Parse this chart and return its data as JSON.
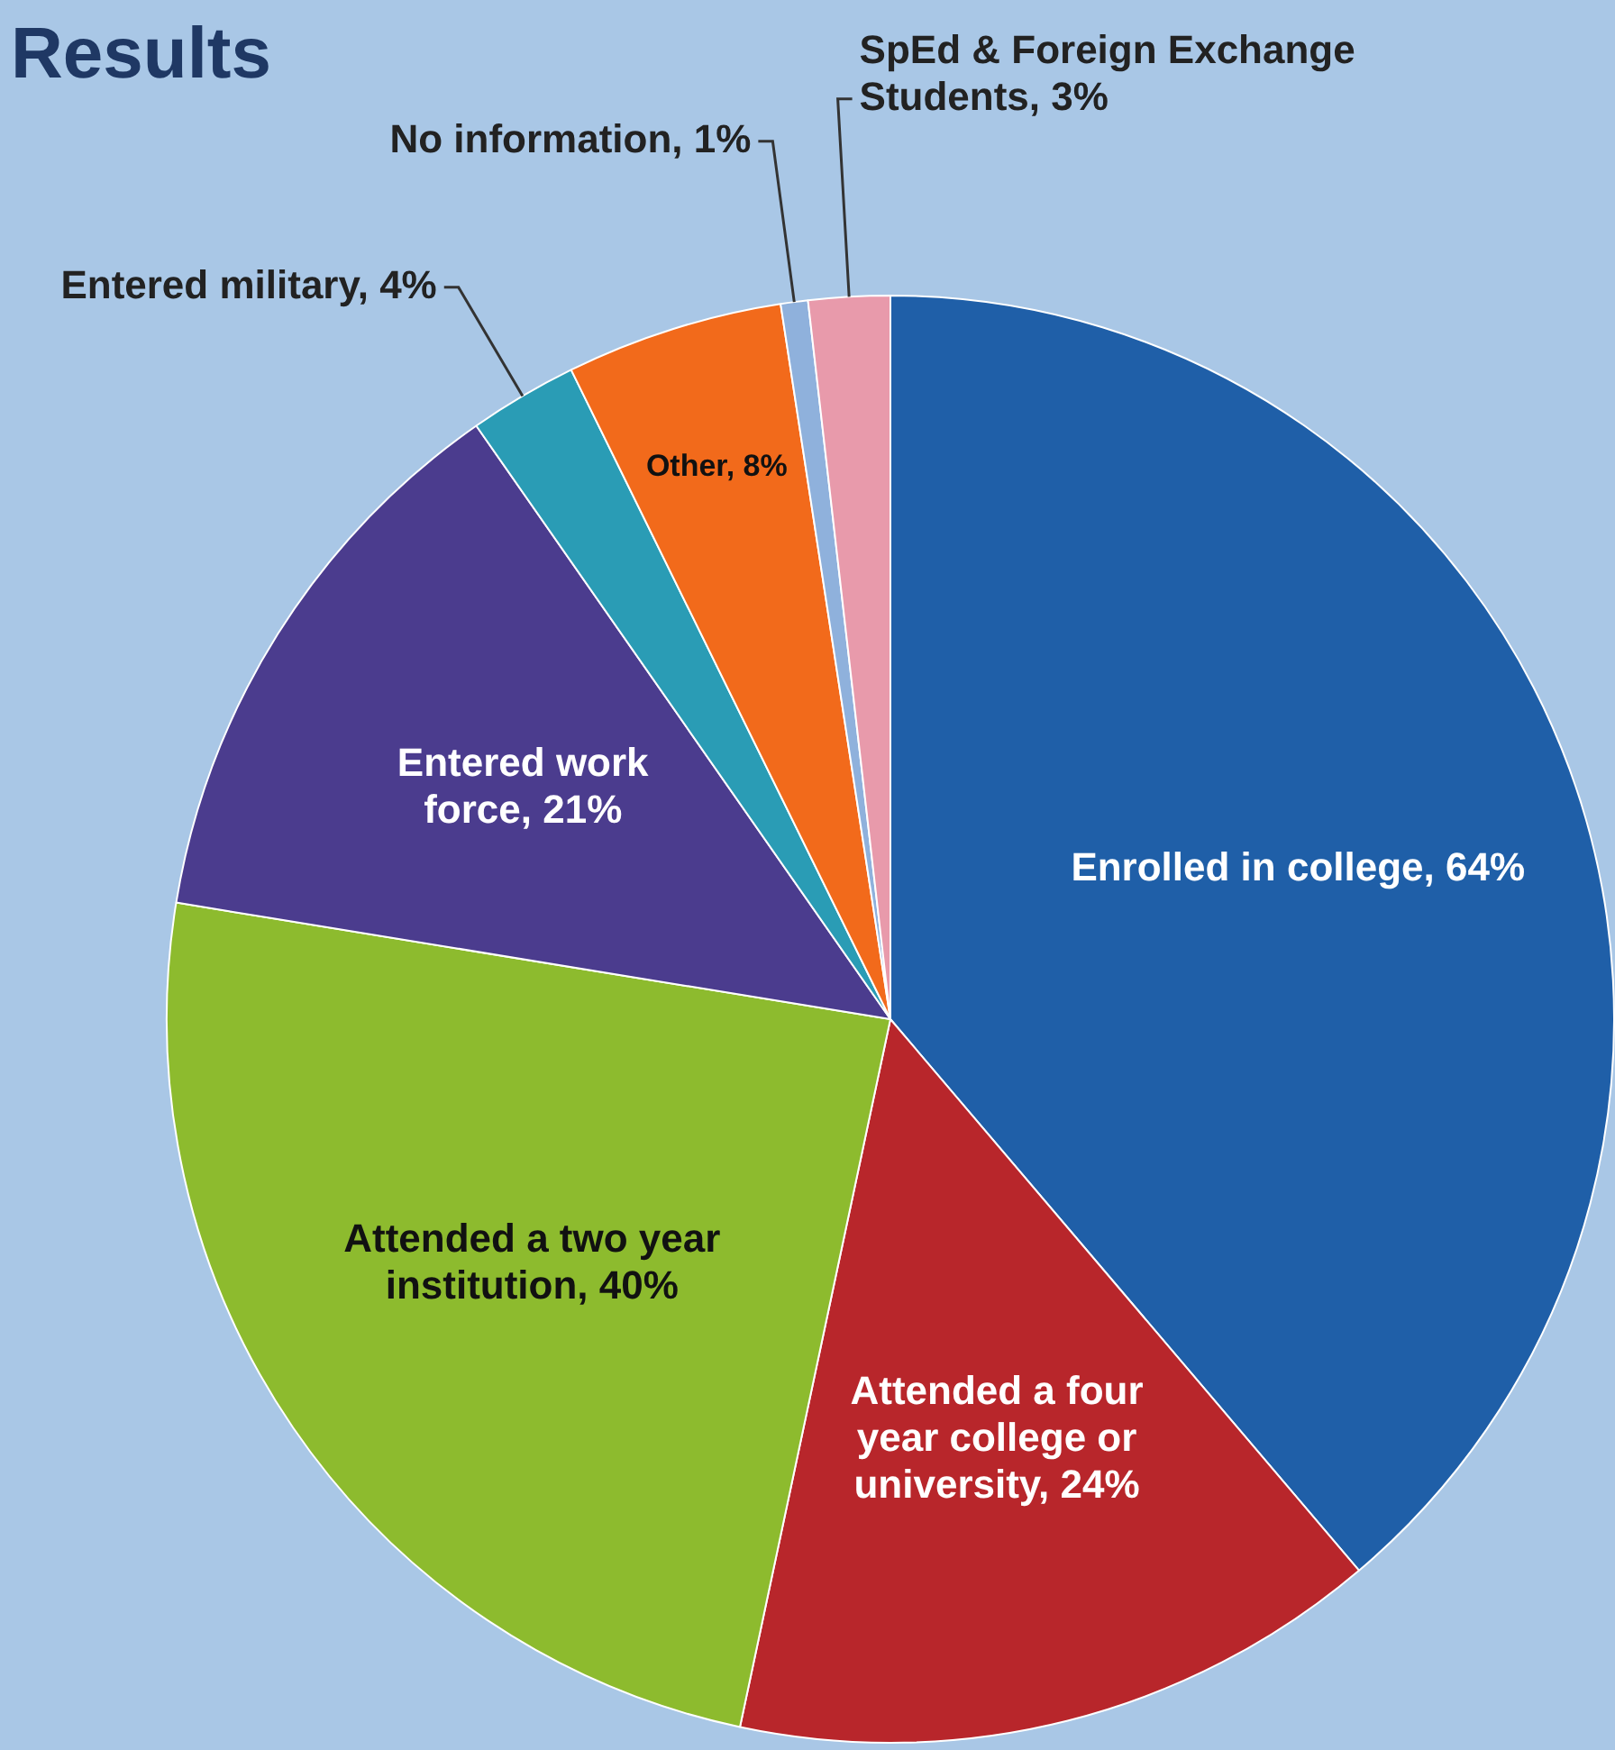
{
  "chart_data": {
    "type": "pie",
    "title": "Results",
    "categories": [
      "Enrolled in college",
      "Attended a four year college or university",
      "Attended a two year institution",
      "Entered work force",
      "Entered military",
      "Other",
      "No information",
      "SpEd & Foreign Exchange Students"
    ],
    "values": [
      64,
      24,
      40,
      21,
      4,
      8,
      1,
      3
    ],
    "value_labels": [
      "64%",
      "24%",
      "40%",
      "21%",
      "4%",
      "8%",
      "1%",
      "3%"
    ],
    "colors": [
      "#1f5fa8",
      "#b8262b",
      "#8dbb2e",
      "#4b3c8e",
      "#2a9cb5",
      "#f26a1b",
      "#8fb1dc",
      "#e89aab"
    ],
    "legend": false
  }
}
